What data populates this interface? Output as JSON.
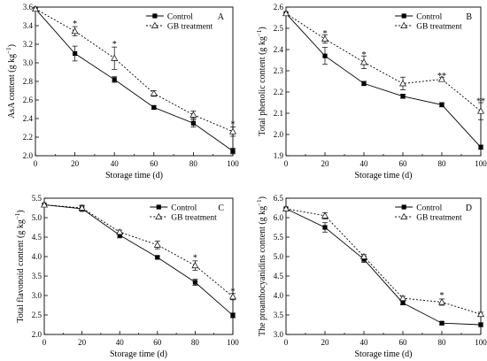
{
  "chart_data": [
    {
      "type": "line",
      "panel_label": "A",
      "xlabel": "Storage time (d)",
      "ylabel": "AsA content (g kg",
      "ylabel_sup": "−1",
      "ylabel_tail": ")",
      "xlim": [
        0,
        100
      ],
      "ylim": [
        2.0,
        3.6
      ],
      "xticks": [
        0,
        20,
        40,
        60,
        80,
        100
      ],
      "yticks": [
        2.0,
        2.2,
        2.4,
        2.6,
        2.8,
        3.0,
        3.2,
        3.4,
        3.6
      ],
      "ytick_decimals": 1,
      "legend_position": "top-right",
      "series": [
        {
          "name": "Control",
          "marker": "filled-square",
          "line": "solid",
          "x": [
            0,
            20,
            40,
            60,
            80,
            100
          ],
          "y": [
            3.58,
            3.1,
            2.82,
            2.52,
            2.35,
            2.05
          ],
          "err": [
            0,
            0.08,
            0.03,
            0.02,
            0.04,
            0.03
          ]
        },
        {
          "name": "GB treatment",
          "marker": "open-triangle",
          "line": "dashed",
          "x": [
            0,
            20,
            40,
            60,
            80,
            100
          ],
          "y": [
            3.58,
            3.34,
            3.05,
            2.67,
            2.44,
            2.26
          ],
          "err": [
            0,
            0.05,
            0.12,
            0.03,
            0.04,
            0.05
          ]
        }
      ],
      "annotations": [
        {
          "x": 20,
          "y": 3.43,
          "text": "*"
        },
        {
          "x": 40,
          "y": 3.21,
          "text": "*"
        },
        {
          "x": 100,
          "y": 2.35,
          "text": "*"
        }
      ]
    },
    {
      "type": "line",
      "panel_label": "B",
      "xlabel": "Storage time (d)",
      "ylabel": "Total phenolic content (g kg",
      "ylabel_sup": "−1",
      "ylabel_tail": ")",
      "xlim": [
        0,
        100
      ],
      "ylim": [
        1.9,
        2.6
      ],
      "xticks": [
        0,
        20,
        40,
        60,
        80,
        100
      ],
      "yticks": [
        1.9,
        2.0,
        2.1,
        2.2,
        2.3,
        2.4,
        2.5,
        2.6
      ],
      "ytick_decimals": 1,
      "legend_position": "top-right",
      "series": [
        {
          "name": "Control",
          "marker": "filled-square",
          "line": "solid",
          "x": [
            0,
            20,
            40,
            60,
            80,
            100
          ],
          "y": [
            2.57,
            2.37,
            2.24,
            2.18,
            2.14,
            1.94
          ],
          "err": [
            0,
            0.04,
            0.01,
            0.01,
            0.01,
            0.01
          ]
        },
        {
          "name": "GB treatment",
          "marker": "open-triangle",
          "line": "dashed",
          "x": [
            0,
            20,
            40,
            60,
            80,
            100
          ],
          "y": [
            2.57,
            2.45,
            2.34,
            2.24,
            2.26,
            2.11
          ],
          "err": [
            0,
            0.02,
            0.03,
            0.03,
            0.01,
            0.04
          ]
        }
      ],
      "annotations": [
        {
          "x": 20,
          "y": 2.48,
          "text": "*"
        },
        {
          "x": 40,
          "y": 2.38,
          "text": "*"
        },
        {
          "x": 80,
          "y": 2.28,
          "text": "**"
        },
        {
          "x": 100,
          "y": 2.16,
          "text": "**"
        }
      ]
    },
    {
      "type": "line",
      "panel_label": "C",
      "xlabel": "Storage time (d)",
      "ylabel": "Total flavonoid content (g kg",
      "ylabel_sup": "−1",
      "ylabel_tail": ")",
      "xlim": [
        0,
        100
      ],
      "ylim": [
        2.0,
        5.5
      ],
      "xticks": [
        0,
        20,
        40,
        60,
        80,
        100
      ],
      "yticks": [
        2.0,
        2.5,
        3.0,
        3.5,
        4.0,
        4.5,
        5.0,
        5.5
      ],
      "ytick_decimals": 1,
      "legend_position": "top-right",
      "series": [
        {
          "name": "Control",
          "marker": "filled-square",
          "line": "solid",
          "x": [
            0,
            20,
            40,
            60,
            80,
            100
          ],
          "y": [
            5.33,
            5.23,
            4.55,
            3.98,
            3.34,
            2.49
          ],
          "err": [
            0,
            0.07,
            0.07,
            0.04,
            0.08,
            0.06
          ]
        },
        {
          "name": "GB treatment",
          "marker": "open-triangle",
          "line": "dashed",
          "x": [
            0,
            20,
            40,
            60,
            80,
            100
          ],
          "y": [
            5.33,
            5.25,
            4.63,
            4.3,
            3.77,
            2.97
          ],
          "err": [
            0,
            0.07,
            0.05,
            0.1,
            0.12,
            0.08
          ]
        }
      ],
      "annotations": [
        {
          "x": 80,
          "y": 3.99,
          "text": "*"
        },
        {
          "x": 100,
          "y": 3.13,
          "text": "*"
        }
      ]
    },
    {
      "type": "line",
      "panel_label": "D",
      "xlabel": "Storage time (d)",
      "ylabel": "The proanthocyanidins content (g kg",
      "ylabel_sup": "−1",
      "ylabel_tail": ")",
      "xlim": [
        0,
        100
      ],
      "ylim": [
        3.0,
        6.5
      ],
      "xticks": [
        0,
        20,
        40,
        60,
        80,
        100
      ],
      "yticks": [
        3.0,
        3.5,
        4.0,
        4.5,
        5.0,
        5.5,
        6.0,
        6.5
      ],
      "ytick_decimals": 1,
      "legend_position": "top-right",
      "series": [
        {
          "name": "Control",
          "marker": "filled-square",
          "line": "solid",
          "x": [
            0,
            20,
            40,
            60,
            80,
            100
          ],
          "y": [
            6.23,
            5.75,
            4.93,
            3.81,
            3.29,
            3.25
          ],
          "err": [
            0,
            0.12,
            0.08,
            0.05,
            0.04,
            0.05
          ]
        },
        {
          "name": "GB treatment",
          "marker": "open-triangle",
          "line": "dashed",
          "x": [
            0,
            20,
            40,
            60,
            80,
            100
          ],
          "y": [
            6.23,
            6.05,
            5.0,
            3.93,
            3.83,
            3.52
          ],
          "err": [
            0,
            0.08,
            0.05,
            0.05,
            0.08,
            0.05
          ]
        }
      ],
      "annotations": [
        {
          "x": 80,
          "y": 4.02,
          "text": "*"
        }
      ]
    }
  ]
}
